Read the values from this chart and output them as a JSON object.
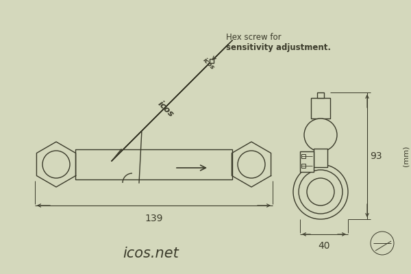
{
  "bg_color": "#d4d8bc",
  "line_color": "#3a3a2a",
  "title": "icos.net",
  "title_fontsize": 15,
  "annotation_line1": "Hex screw for",
  "annotation_line2": "sensitivity adjustment.",
  "annotation_fontsize": 9,
  "dim_139": "139",
  "dim_40": "40",
  "dim_93": "93",
  "dim_mm": "(mm)"
}
